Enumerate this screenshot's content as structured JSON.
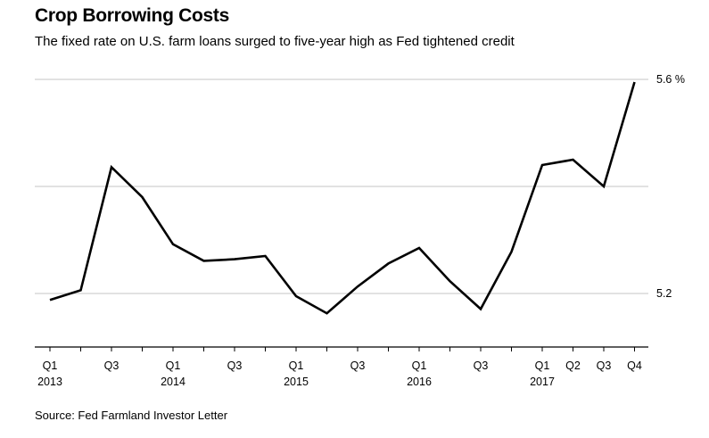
{
  "title": "Crop Borrowing Costs",
  "subtitle": "The fixed rate on U.S. farm loans surged to five-year high as Fed tightened credit",
  "source": "Source: Fed Farmland Investor Letter",
  "colors": {
    "line": "#000000",
    "grid": "#d9d9d9",
    "axis": "#000000"
  },
  "chart_data": {
    "type": "line",
    "title": "Crop Borrowing Costs",
    "xlabel": "",
    "ylabel": "",
    "ylim": [
      5.1,
      5.6
    ],
    "grid": true,
    "y_grid_values": [
      5.2,
      5.4,
      5.6
    ],
    "y_tick_labels": [
      {
        "value": 5.6,
        "label": "5.6 %"
      },
      {
        "value": 5.2,
        "label": "5.2"
      }
    ],
    "x": [
      "2013 Q1",
      "2013 Q2",
      "2013 Q3",
      "2013 Q4",
      "2014 Q1",
      "2014 Q2",
      "2014 Q3",
      "2014 Q4",
      "2015 Q1",
      "2015 Q2",
      "2015 Q3",
      "2015 Q4",
      "2016 Q1",
      "2016 Q2",
      "2016 Q3",
      "2016 Q4",
      "2017 Q1",
      "2017 Q2",
      "2017 Q3",
      "2017 Q4"
    ],
    "x_tick_labels": [
      {
        "index": 0,
        "quarter": "Q1",
        "year": "2013"
      },
      {
        "index": 2,
        "quarter": "Q3",
        "year": ""
      },
      {
        "index": 4,
        "quarter": "Q1",
        "year": "2014"
      },
      {
        "index": 6,
        "quarter": "Q3",
        "year": ""
      },
      {
        "index": 8,
        "quarter": "Q1",
        "year": "2015"
      },
      {
        "index": 10,
        "quarter": "Q3",
        "year": ""
      },
      {
        "index": 12,
        "quarter": "Q1",
        "year": "2016"
      },
      {
        "index": 14,
        "quarter": "Q3",
        "year": ""
      },
      {
        "index": 16,
        "quarter": "Q1",
        "year": "2017"
      },
      {
        "index": 17,
        "quarter": "Q2",
        "year": ""
      },
      {
        "index": 18,
        "quarter": "Q3",
        "year": ""
      },
      {
        "index": 19,
        "quarter": "Q4",
        "year": ""
      }
    ],
    "series": [
      {
        "values": [
          5.188,
          5.206,
          5.436,
          5.38,
          5.292,
          5.261,
          5.264,
          5.27,
          5.195,
          5.163,
          5.213,
          5.256,
          5.285,
          5.223,
          5.171,
          5.278,
          5.44,
          5.45,
          5.4,
          5.595
        ]
      }
    ]
  }
}
